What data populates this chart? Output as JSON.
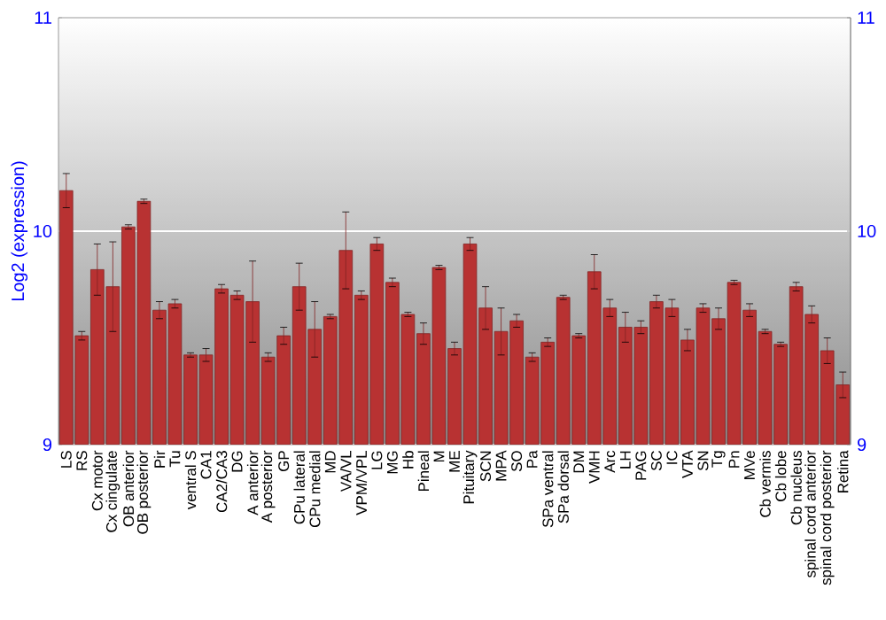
{
  "chart_data": {
    "type": "bar",
    "ylabel": "Log2 (expression)",
    "categories": [
      "LS",
      "RS",
      "Cx motor",
      "Cx cingulate",
      "OB anterior",
      "OB posterior",
      "Pir",
      "Tu",
      "ventral S",
      "CA1",
      "CA2/CA3",
      "DG",
      "A anterior",
      "A posterior",
      "GP",
      "CPu lateral",
      "CPu medial",
      "MD",
      "VA/VL",
      "VPM/VPL",
      "LG",
      "MG",
      "Hb",
      "Pineal",
      "M",
      "ME",
      "Pituitary",
      "SCN",
      "MPA",
      "SO",
      "Pa",
      "SPa ventral",
      "SPa dorsal",
      "DM",
      "VMH",
      "Arc",
      "LH",
      "PAG",
      "SC",
      "IC",
      "VTA",
      "SN",
      "Tg",
      "Pn",
      "MVe",
      "Cb vermis",
      "Cb lobe",
      "Cb nucleus",
      "spinal cord anterior",
      "spinal cord posterior",
      "Retina"
    ],
    "values": [
      10.19,
      9.51,
      9.82,
      9.74,
      10.02,
      10.14,
      9.63,
      9.66,
      9.42,
      9.42,
      9.73,
      9.7,
      9.67,
      9.41,
      9.51,
      9.74,
      9.54,
      9.6,
      9.91,
      9.7,
      9.94,
      9.76,
      9.61,
      9.52,
      9.83,
      9.45,
      9.94,
      9.64,
      9.53,
      9.58,
      9.41,
      9.48,
      9.69,
      9.51,
      9.81,
      9.64,
      9.55,
      9.55,
      9.67,
      9.64,
      9.49,
      9.64,
      9.59,
      9.76,
      9.63,
      9.53,
      9.47,
      9.74,
      9.61,
      9.44,
      9.28
    ],
    "errors": [
      0.08,
      0.02,
      0.12,
      0.21,
      0.01,
      0.01,
      0.04,
      0.02,
      0.01,
      0.03,
      0.02,
      0.02,
      0.19,
      0.02,
      0.04,
      0.11,
      0.13,
      0.01,
      0.18,
      0.02,
      0.03,
      0.02,
      0.01,
      0.05,
      0.01,
      0.03,
      0.03,
      0.1,
      0.11,
      0.03,
      0.02,
      0.02,
      0.01,
      0.01,
      0.08,
      0.04,
      0.07,
      0.03,
      0.03,
      0.04,
      0.05,
      0.02,
      0.05,
      0.01,
      0.03,
      0.01,
      0.01,
      0.02,
      0.04,
      0.06,
      0.06
    ],
    "color": "#b83232",
    "ylim": [
      9,
      11
    ],
    "yticks": [
      9,
      10,
      11
    ],
    "y2lim": [
      9,
      11
    ],
    "y2ticks": [
      9,
      10,
      11
    ],
    "grid": "y"
  }
}
